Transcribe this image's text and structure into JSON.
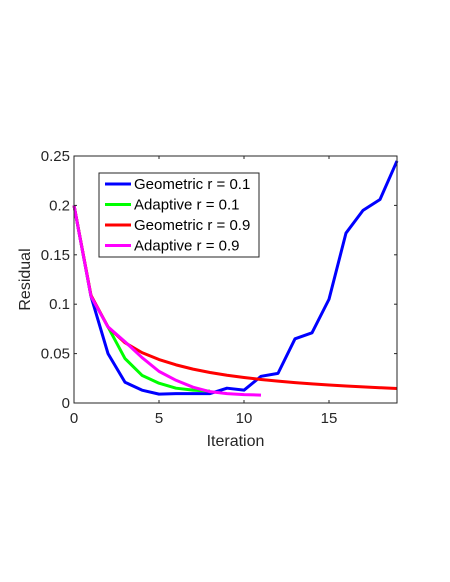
{
  "chart_data": {
    "type": "line",
    "xlabel": "Iteration",
    "ylabel": "Residual",
    "xlim": [
      0,
      19
    ],
    "ylim": [
      0,
      0.25
    ],
    "xticks": [
      0,
      5,
      10,
      15
    ],
    "xtick_labels": [
      "0",
      "5",
      "10",
      "15"
    ],
    "yticks": [
      0,
      0.05,
      0.1,
      0.15,
      0.2,
      0.25
    ],
    "ytick_labels": [
      "0",
      "0.05",
      "0.1",
      "0.15",
      "0.2",
      "0.25"
    ],
    "grid": false,
    "legend_position": "top-left",
    "series": [
      {
        "name": "Geometric r = 0.1",
        "color": "#0000ff",
        "x": [
          0,
          1,
          2,
          3,
          4,
          5,
          6,
          7,
          8,
          9,
          10,
          11,
          12,
          13,
          14,
          15,
          16,
          17,
          18,
          19
        ],
        "y": [
          0.2,
          0.108,
          0.05,
          0.021,
          0.013,
          0.009,
          0.0095,
          0.0095,
          0.0095,
          0.015,
          0.013,
          0.027,
          0.03,
          0.065,
          0.071,
          0.105,
          0.172,
          0.195,
          0.206,
          0.245
        ]
      },
      {
        "name": "Adaptive r = 0.1",
        "color": "#00ff00",
        "x": [
          0,
          1,
          2,
          3,
          4,
          5,
          6,
          7,
          8
        ],
        "y": [
          0.2,
          0.108,
          0.077,
          0.045,
          0.028,
          0.02,
          0.015,
          0.013,
          0.012
        ]
      },
      {
        "name": "Geometric r = 0.9",
        "color": "#ff0000",
        "x": [
          0,
          1,
          2,
          3,
          4,
          5,
          6,
          7,
          8,
          9,
          10,
          11,
          12,
          13,
          14,
          15,
          16,
          17,
          18,
          19
        ],
        "y": [
          0.2,
          0.109,
          0.077,
          0.061,
          0.051,
          0.044,
          0.0386,
          0.0343,
          0.0309,
          0.0281,
          0.0258,
          0.0238,
          0.0221,
          0.0206,
          0.0193,
          0.0182,
          0.0172,
          0.0163,
          0.0155,
          0.0147
        ]
      },
      {
        "name": "Adaptive r = 0.9",
        "color": "#ff00ff",
        "x": [
          0,
          1,
          2,
          3,
          4,
          5,
          6,
          7,
          8,
          9,
          10,
          11
        ],
        "y": [
          0.2,
          0.108,
          0.077,
          0.062,
          0.046,
          0.032,
          0.023,
          0.016,
          0.0115,
          0.0095,
          0.0085,
          0.008
        ]
      }
    ]
  }
}
